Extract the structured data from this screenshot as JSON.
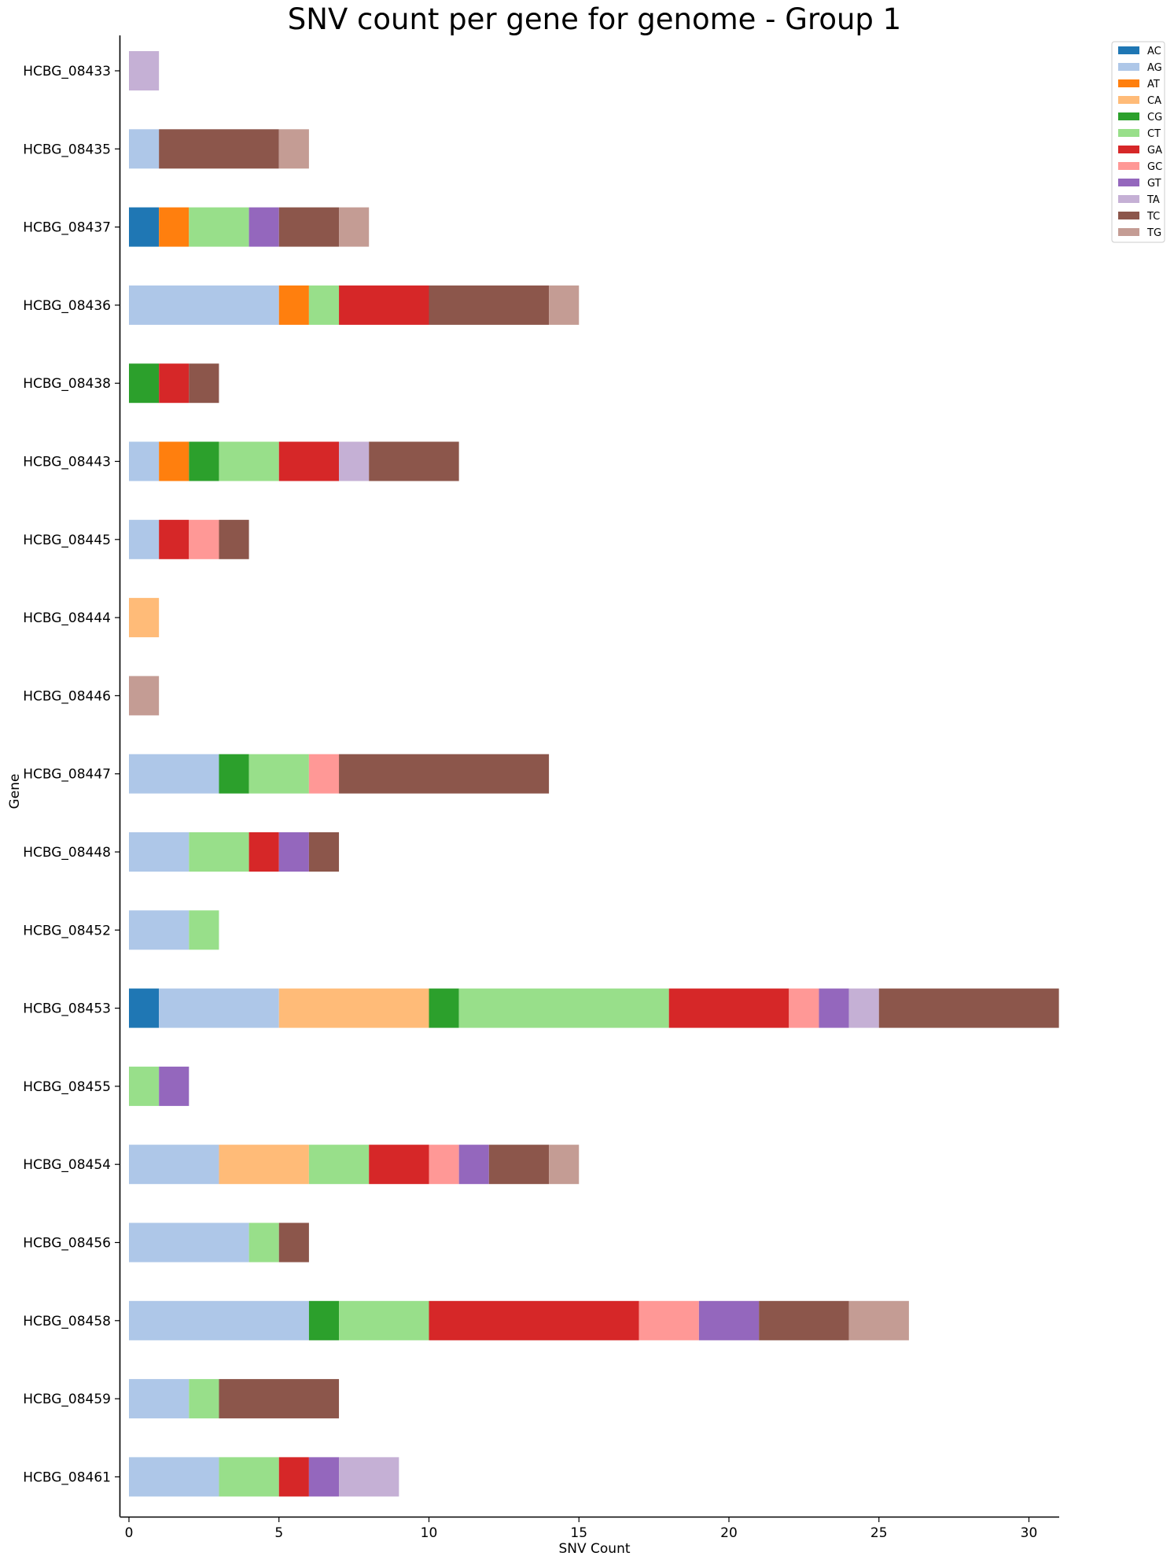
{
  "chart_data": {
    "type": "bar",
    "orientation": "horizontal",
    "stacked": true,
    "title": "SNV count per gene for genome - Group 1",
    "xlabel": "SNV Count",
    "ylabel": "Gene",
    "xlim": [
      0,
      31
    ],
    "xticks": [
      0,
      5,
      10,
      15,
      20,
      25,
      30
    ],
    "grid": false,
    "legend_position": "top-right",
    "categories": [
      "HCBG_08433",
      "HCBG_08435",
      "HCBG_08437",
      "HCBG_08436",
      "HCBG_08438",
      "HCBG_08443",
      "HCBG_08445",
      "HCBG_08444",
      "HCBG_08446",
      "HCBG_08447",
      "HCBG_08448",
      "HCBG_08452",
      "HCBG_08453",
      "HCBG_08455",
      "HCBG_08454",
      "HCBG_08456",
      "HCBG_08458",
      "HCBG_08459",
      "HCBG_08461"
    ],
    "series": [
      {
        "name": "AC",
        "color": "#1f77b4",
        "values": [
          0,
          0,
          1,
          0,
          0,
          0,
          0,
          0,
          0,
          0,
          0,
          0,
          1,
          0,
          0,
          0,
          0,
          0,
          0
        ]
      },
      {
        "name": "AG",
        "color": "#aec7e8",
        "values": [
          0,
          1,
          0,
          5,
          0,
          1,
          1,
          0,
          0,
          3,
          2,
          2,
          4,
          0,
          3,
          4,
          6,
          2,
          3
        ]
      },
      {
        "name": "AT",
        "color": "#ff7f0e",
        "values": [
          0,
          0,
          1,
          1,
          0,
          1,
          0,
          0,
          0,
          0,
          0,
          0,
          0,
          0,
          0,
          0,
          0,
          0,
          0
        ]
      },
      {
        "name": "CA",
        "color": "#ffbb78",
        "values": [
          0,
          0,
          0,
          0,
          0,
          0,
          0,
          1,
          0,
          0,
          0,
          0,
          5,
          0,
          3,
          0,
          0,
          0,
          0
        ]
      },
      {
        "name": "CG",
        "color": "#2ca02c",
        "values": [
          0,
          0,
          0,
          0,
          1,
          1,
          0,
          0,
          0,
          1,
          0,
          0,
          1,
          0,
          0,
          0,
          1,
          0,
          0
        ]
      },
      {
        "name": "CT",
        "color": "#98df8a",
        "values": [
          0,
          0,
          2,
          1,
          0,
          2,
          0,
          0,
          0,
          2,
          2,
          1,
          7,
          1,
          2,
          1,
          3,
          1,
          2
        ]
      },
      {
        "name": "GA",
        "color": "#d62728",
        "values": [
          0,
          0,
          0,
          3,
          1,
          2,
          1,
          0,
          0,
          0,
          1,
          0,
          4,
          0,
          2,
          0,
          7,
          0,
          1
        ]
      },
      {
        "name": "GC",
        "color": "#ff9896",
        "values": [
          0,
          0,
          0,
          0,
          0,
          0,
          1,
          0,
          0,
          1,
          0,
          0,
          1,
          0,
          1,
          0,
          2,
          0,
          0
        ]
      },
      {
        "name": "GT",
        "color": "#9467bd",
        "values": [
          0,
          0,
          1,
          0,
          0,
          0,
          0,
          0,
          0,
          0,
          1,
          0,
          1,
          1,
          1,
          0,
          2,
          0,
          1
        ]
      },
      {
        "name": "TA",
        "color": "#c5b0d5",
        "values": [
          1,
          0,
          0,
          0,
          0,
          1,
          0,
          0,
          0,
          0,
          0,
          0,
          1,
          0,
          0,
          0,
          0,
          0,
          2
        ]
      },
      {
        "name": "TC",
        "color": "#8c564b",
        "values": [
          0,
          4,
          2,
          4,
          1,
          3,
          1,
          0,
          0,
          7,
          1,
          0,
          6,
          0,
          2,
          1,
          3,
          4,
          0
        ]
      },
      {
        "name": "TG",
        "color": "#c49c94",
        "values": [
          0,
          1,
          1,
          1,
          0,
          0,
          0,
          0,
          1,
          0,
          0,
          0,
          0,
          0,
          1,
          0,
          2,
          0,
          0
        ]
      }
    ]
  }
}
